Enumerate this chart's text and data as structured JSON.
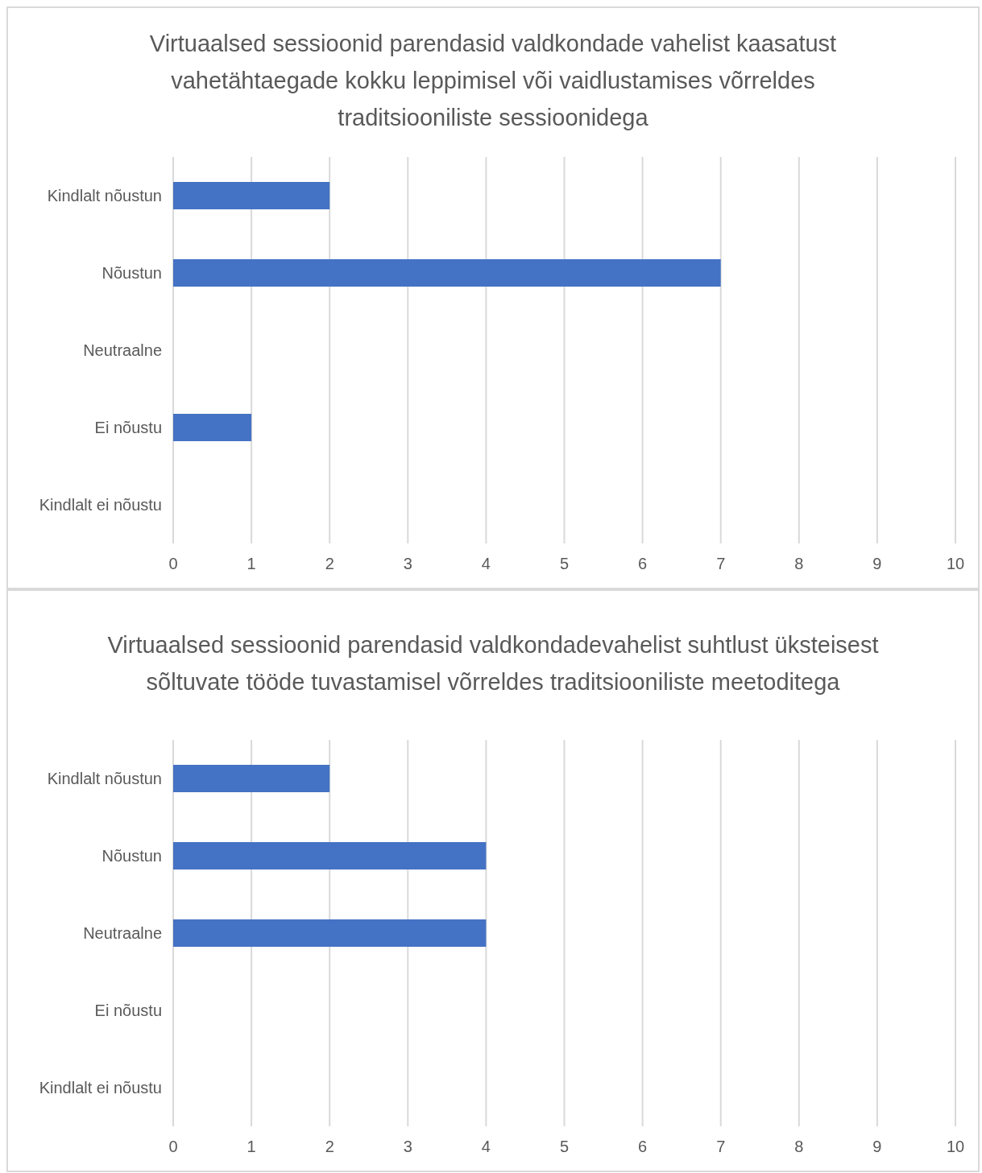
{
  "chart_data": [
    {
      "type": "bar",
      "orientation": "horizontal",
      "title": "Virtuaalsed sessioonid parendasid valdkondade vahelist kaasatust vahetähtaegade kokku leppimisel või vaidlustamises võrreldes traditsiooniliste sessioonidega",
      "categories": [
        "Kindlalt nõustun",
        "Nõustun",
        "Neutraalne",
        "Ei nõustu",
        "Kindlalt ei nõustu"
      ],
      "values": [
        2,
        7,
        0,
        1,
        0
      ],
      "color": "#4472c4",
      "xlim": [
        0,
        10
      ],
      "xticks": [
        0,
        1,
        2,
        3,
        4,
        5,
        6,
        7,
        8,
        9,
        10
      ],
      "grid": "x",
      "legend": false
    },
    {
      "type": "bar",
      "orientation": "horizontal",
      "title": "Virtuaalsed sessioonid parendasid valdkondadevahelist suhtlust üksteisest sõltuvate tööde tuvastamisel võrreldes traditsiooniliste meetoditega",
      "categories": [
        "Kindlalt nõustun",
        "Nõustun",
        "Neutraalne",
        "Ei nõustu",
        "Kindlalt ei nõustu"
      ],
      "values": [
        2,
        4,
        4,
        0,
        0
      ],
      "color": "#4472c4",
      "xlim": [
        0,
        10
      ],
      "xticks": [
        0,
        1,
        2,
        3,
        4,
        5,
        6,
        7,
        8,
        9,
        10
      ],
      "grid": "x",
      "legend": false
    }
  ]
}
